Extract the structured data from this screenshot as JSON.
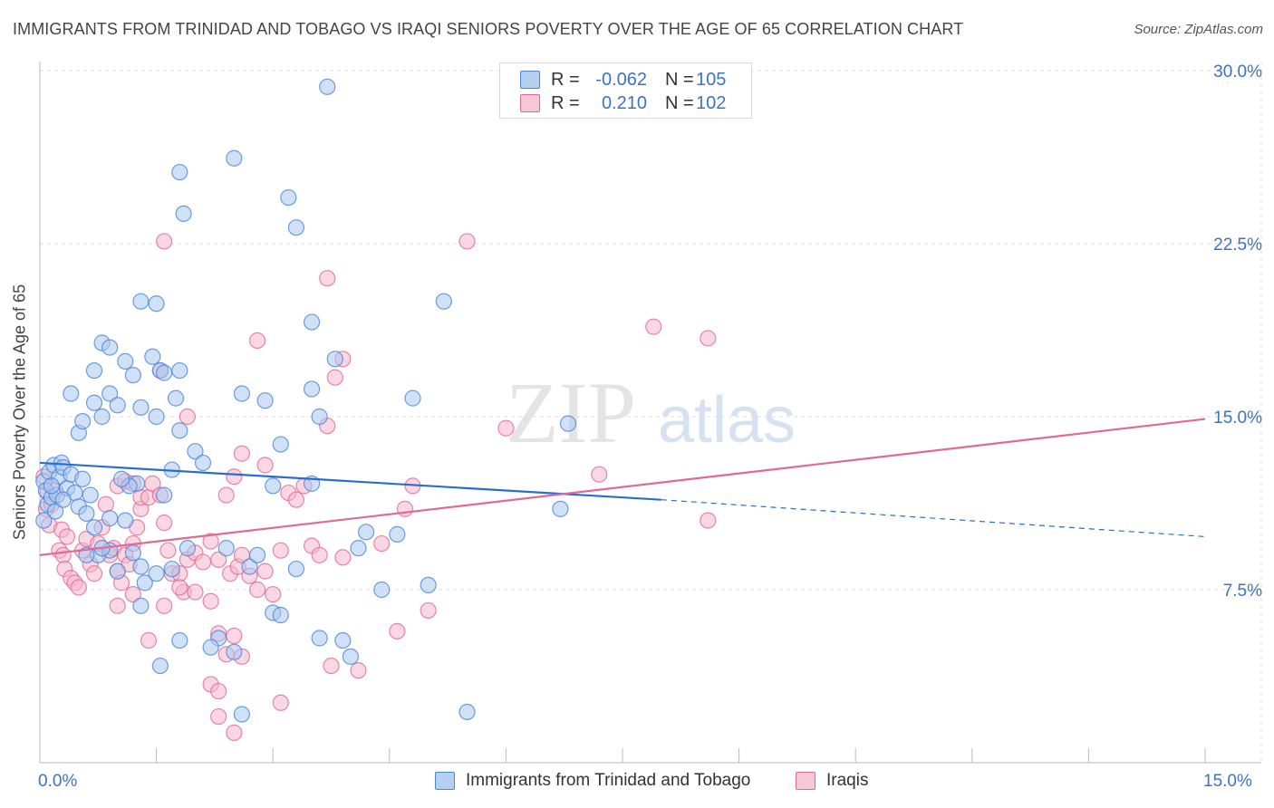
{
  "title": "IMMIGRANTS FROM TRINIDAD AND TOBAGO VS IRAQI SENIORS POVERTY OVER THE AGE OF 65 CORRELATION CHART",
  "source": "Source: ZipAtlas.com",
  "watermark": {
    "zip": "ZIP",
    "atlas": "atlas"
  },
  "legend": {
    "series1": {
      "r_label": "R =",
      "r_value": "-0.062",
      "n_label": "N =",
      "n_value": "105"
    },
    "series2": {
      "r_label": "R =",
      "r_value": "0.210",
      "n_label": "N =",
      "n_value": "102"
    }
  },
  "colors": {
    "blue": "#4a86d8",
    "blue_fill": "#a9c8f0",
    "pink": "#e06a94",
    "pink_fill": "#f5b6cb",
    "axis_text": "#3b73c4"
  },
  "chart_data": {
    "type": "scatter",
    "title": "IMMIGRANTS FROM TRINIDAD AND TOBAGO VS IRAQI SENIORS POVERTY OVER THE AGE OF 65 CORRELATION CHART",
    "xlabel": "",
    "ylabel": "Seniors Poverty Over the Age of 65",
    "xlim": [
      0,
      15
    ],
    "ylim": [
      0,
      30
    ],
    "x_tick_labels": [
      "0.0%",
      "15.0%"
    ],
    "y_ticks": [
      7.5,
      15.0,
      22.5,
      30.0
    ],
    "y_tick_labels": [
      "7.5%",
      "15.0%",
      "22.5%",
      "30.0%"
    ],
    "grid": true,
    "legend_position": "top-center",
    "series": [
      {
        "name": "Immigrants from Trinidad and Tobago",
        "color": "#4a86d8",
        "trend": {
          "x": [
            0,
            8.0
          ],
          "y": [
            13.0,
            11.4
          ],
          "dashed_to": [
            15,
            9.8
          ]
        },
        "points": [
          [
            0.05,
            12.2
          ],
          [
            0.08,
            11.8
          ],
          [
            0.1,
            11.2
          ],
          [
            0.12,
            12.6
          ],
          [
            0.15,
            11.5
          ],
          [
            0.18,
            12.9
          ],
          [
            0.2,
            10.9
          ],
          [
            0.22,
            11.6
          ],
          [
            0.25,
            12.4
          ],
          [
            0.28,
            13.0
          ],
          [
            0.3,
            12.8
          ],
          [
            0.35,
            11.9
          ],
          [
            0.4,
            12.5
          ],
          [
            0.45,
            11.7
          ],
          [
            0.5,
            11.1
          ],
          [
            0.55,
            12.3
          ],
          [
            0.6,
            10.8
          ],
          [
            0.65,
            11.6
          ],
          [
            0.7,
            10.2
          ],
          [
            0.75,
            9.0
          ],
          [
            0.5,
            14.3
          ],
          [
            0.55,
            14.8
          ],
          [
            0.7,
            15.6
          ],
          [
            0.8,
            15.0
          ],
          [
            0.9,
            16.0
          ],
          [
            0.4,
            16.0
          ],
          [
            0.7,
            17.0
          ],
          [
            0.8,
            18.2
          ],
          [
            0.9,
            18.0
          ],
          [
            1.1,
            17.4
          ],
          [
            1.0,
            15.5
          ],
          [
            1.2,
            16.8
          ],
          [
            1.3,
            15.4
          ],
          [
            1.45,
            17.6
          ],
          [
            1.55,
            17.0
          ],
          [
            1.6,
            16.9
          ],
          [
            1.3,
            20.0
          ],
          [
            1.5,
            19.9
          ],
          [
            1.8,
            17.0
          ],
          [
            1.75,
            15.8
          ],
          [
            1.5,
            15.0
          ],
          [
            1.8,
            14.4
          ],
          [
            1.7,
            12.7
          ],
          [
            1.6,
            11.6
          ],
          [
            1.25,
            12.1
          ],
          [
            1.15,
            12.0
          ],
          [
            1.1,
            10.5
          ],
          [
            1.2,
            9.1
          ],
          [
            1.0,
            8.3
          ],
          [
            0.9,
            9.2
          ],
          [
            0.8,
            9.3
          ],
          [
            0.6,
            9.0
          ],
          [
            1.3,
            8.5
          ],
          [
            1.35,
            7.8
          ],
          [
            1.5,
            8.2
          ],
          [
            1.3,
            6.8
          ],
          [
            1.7,
            8.4
          ],
          [
            1.9,
            9.3
          ],
          [
            1.8,
            5.3
          ],
          [
            1.55,
            4.2
          ],
          [
            2.3,
            5.4
          ],
          [
            2.2,
            5.0
          ],
          [
            2.6,
            2.1
          ],
          [
            2.5,
            4.8
          ],
          [
            2.7,
            8.5
          ],
          [
            2.8,
            9.0
          ],
          [
            3.0,
            6.5
          ],
          [
            3.1,
            6.4
          ],
          [
            3.3,
            8.4
          ],
          [
            3.0,
            12.0
          ],
          [
            3.1,
            13.8
          ],
          [
            2.9,
            15.7
          ],
          [
            2.6,
            16.0
          ],
          [
            3.5,
            12.1
          ],
          [
            3.6,
            15.0
          ],
          [
            3.5,
            16.2
          ],
          [
            3.8,
            17.5
          ],
          [
            3.5,
            19.1
          ],
          [
            3.3,
            23.2
          ],
          [
            3.2,
            24.5
          ],
          [
            2.5,
            26.2
          ],
          [
            3.7,
            29.3
          ],
          [
            1.85,
            23.8
          ],
          [
            1.8,
            25.6
          ],
          [
            2.0,
            13.5
          ],
          [
            2.1,
            13.0
          ],
          [
            2.4,
            9.3
          ],
          [
            3.6,
            5.4
          ],
          [
            3.9,
            5.3
          ],
          [
            4.0,
            4.6
          ],
          [
            4.1,
            9.3
          ],
          [
            4.2,
            10.0
          ],
          [
            4.4,
            7.5
          ],
          [
            4.6,
            9.9
          ],
          [
            4.8,
            15.8
          ],
          [
            5.0,
            7.7
          ],
          [
            5.2,
            20.0
          ],
          [
            5.5,
            2.2
          ],
          [
            6.8,
            14.7
          ],
          [
            6.7,
            11.0
          ],
          [
            0.9,
            10.6
          ],
          [
            1.05,
            12.3
          ],
          [
            0.3,
            11.4
          ],
          [
            0.15,
            12.0
          ],
          [
            0.05,
            10.5
          ]
        ]
      },
      {
        "name": "Iraqis",
        "color": "#e06a94",
        "trend": {
          "x": [
            0,
            15
          ],
          "y": [
            9.0,
            14.9
          ]
        },
        "points": [
          [
            0.05,
            12.4
          ],
          [
            0.08,
            11.0
          ],
          [
            0.1,
            11.7
          ],
          [
            0.12,
            10.3
          ],
          [
            0.15,
            11.2
          ],
          [
            0.2,
            11.8
          ],
          [
            0.25,
            9.2
          ],
          [
            0.28,
            10.1
          ],
          [
            0.3,
            9.0
          ],
          [
            0.32,
            8.4
          ],
          [
            0.35,
            9.8
          ],
          [
            0.4,
            8.0
          ],
          [
            0.45,
            7.8
          ],
          [
            0.5,
            7.6
          ],
          [
            0.55,
            9.2
          ],
          [
            0.6,
            9.7
          ],
          [
            0.65,
            8.6
          ],
          [
            0.7,
            8.2
          ],
          [
            0.75,
            9.5
          ],
          [
            0.8,
            10.2
          ],
          [
            0.85,
            11.2
          ],
          [
            0.9,
            9.0
          ],
          [
            0.95,
            9.3
          ],
          [
            1.0,
            8.3
          ],
          [
            1.05,
            7.8
          ],
          [
            1.1,
            9.0
          ],
          [
            1.15,
            8.6
          ],
          [
            1.2,
            9.5
          ],
          [
            1.25,
            10.2
          ],
          [
            1.3,
            11.0
          ],
          [
            1.0,
            12.0
          ],
          [
            1.1,
            12.2
          ],
          [
            1.2,
            12.1
          ],
          [
            1.3,
            11.5
          ],
          [
            1.4,
            11.5
          ],
          [
            1.45,
            12.1
          ],
          [
            1.55,
            11.6
          ],
          [
            1.6,
            10.4
          ],
          [
            1.65,
            9.2
          ],
          [
            1.7,
            8.2
          ],
          [
            1.8,
            8.2
          ],
          [
            1.85,
            7.4
          ],
          [
            1.9,
            8.8
          ],
          [
            2.0,
            9.1
          ],
          [
            2.1,
            8.7
          ],
          [
            2.2,
            9.6
          ],
          [
            2.3,
            8.8
          ],
          [
            2.45,
            8.2
          ],
          [
            2.55,
            8.5
          ],
          [
            2.6,
            9.0
          ],
          [
            2.7,
            8.1
          ],
          [
            2.8,
            7.5
          ],
          [
            2.9,
            8.3
          ],
          [
            3.0,
            7.3
          ],
          [
            3.1,
            9.2
          ],
          [
            3.2,
            11.7
          ],
          [
            3.3,
            11.4
          ],
          [
            3.5,
            9.4
          ],
          [
            3.6,
            9.0
          ],
          [
            3.9,
            8.9
          ],
          [
            1.0,
            6.8
          ],
          [
            1.2,
            7.3
          ],
          [
            1.4,
            5.3
          ],
          [
            1.6,
            6.8
          ],
          [
            1.8,
            7.6
          ],
          [
            2.0,
            7.4
          ],
          [
            2.2,
            7.0
          ],
          [
            2.3,
            5.6
          ],
          [
            2.4,
            4.7
          ],
          [
            2.5,
            5.5
          ],
          [
            2.6,
            4.6
          ],
          [
            2.2,
            3.4
          ],
          [
            2.3,
            3.1
          ],
          [
            2.3,
            2.0
          ],
          [
            2.5,
            1.3
          ],
          [
            3.1,
            2.6
          ],
          [
            3.75,
            4.2
          ],
          [
            4.1,
            4.0
          ],
          [
            4.6,
            5.7
          ],
          [
            5.0,
            6.6
          ],
          [
            2.4,
            11.6
          ],
          [
            2.5,
            12.4
          ],
          [
            2.6,
            13.4
          ],
          [
            2.9,
            12.9
          ],
          [
            3.4,
            12.0
          ],
          [
            3.7,
            14.6
          ],
          [
            3.8,
            16.7
          ],
          [
            3.9,
            17.5
          ],
          [
            3.7,
            21.0
          ],
          [
            2.8,
            18.3
          ],
          [
            1.6,
            22.6
          ],
          [
            1.55,
            17.0
          ],
          [
            1.9,
            15.0
          ],
          [
            4.4,
            9.5
          ],
          [
            4.7,
            11.0
          ],
          [
            4.8,
            12.0
          ],
          [
            5.5,
            22.6
          ],
          [
            6.0,
            14.5
          ],
          [
            7.2,
            12.5
          ],
          [
            7.9,
            18.9
          ],
          [
            8.6,
            18.4
          ],
          [
            8.6,
            10.5
          ]
        ]
      }
    ]
  },
  "bottom_legend": {
    "series1": "Immigrants from Trinidad and Tobago",
    "series2": "Iraqis"
  }
}
